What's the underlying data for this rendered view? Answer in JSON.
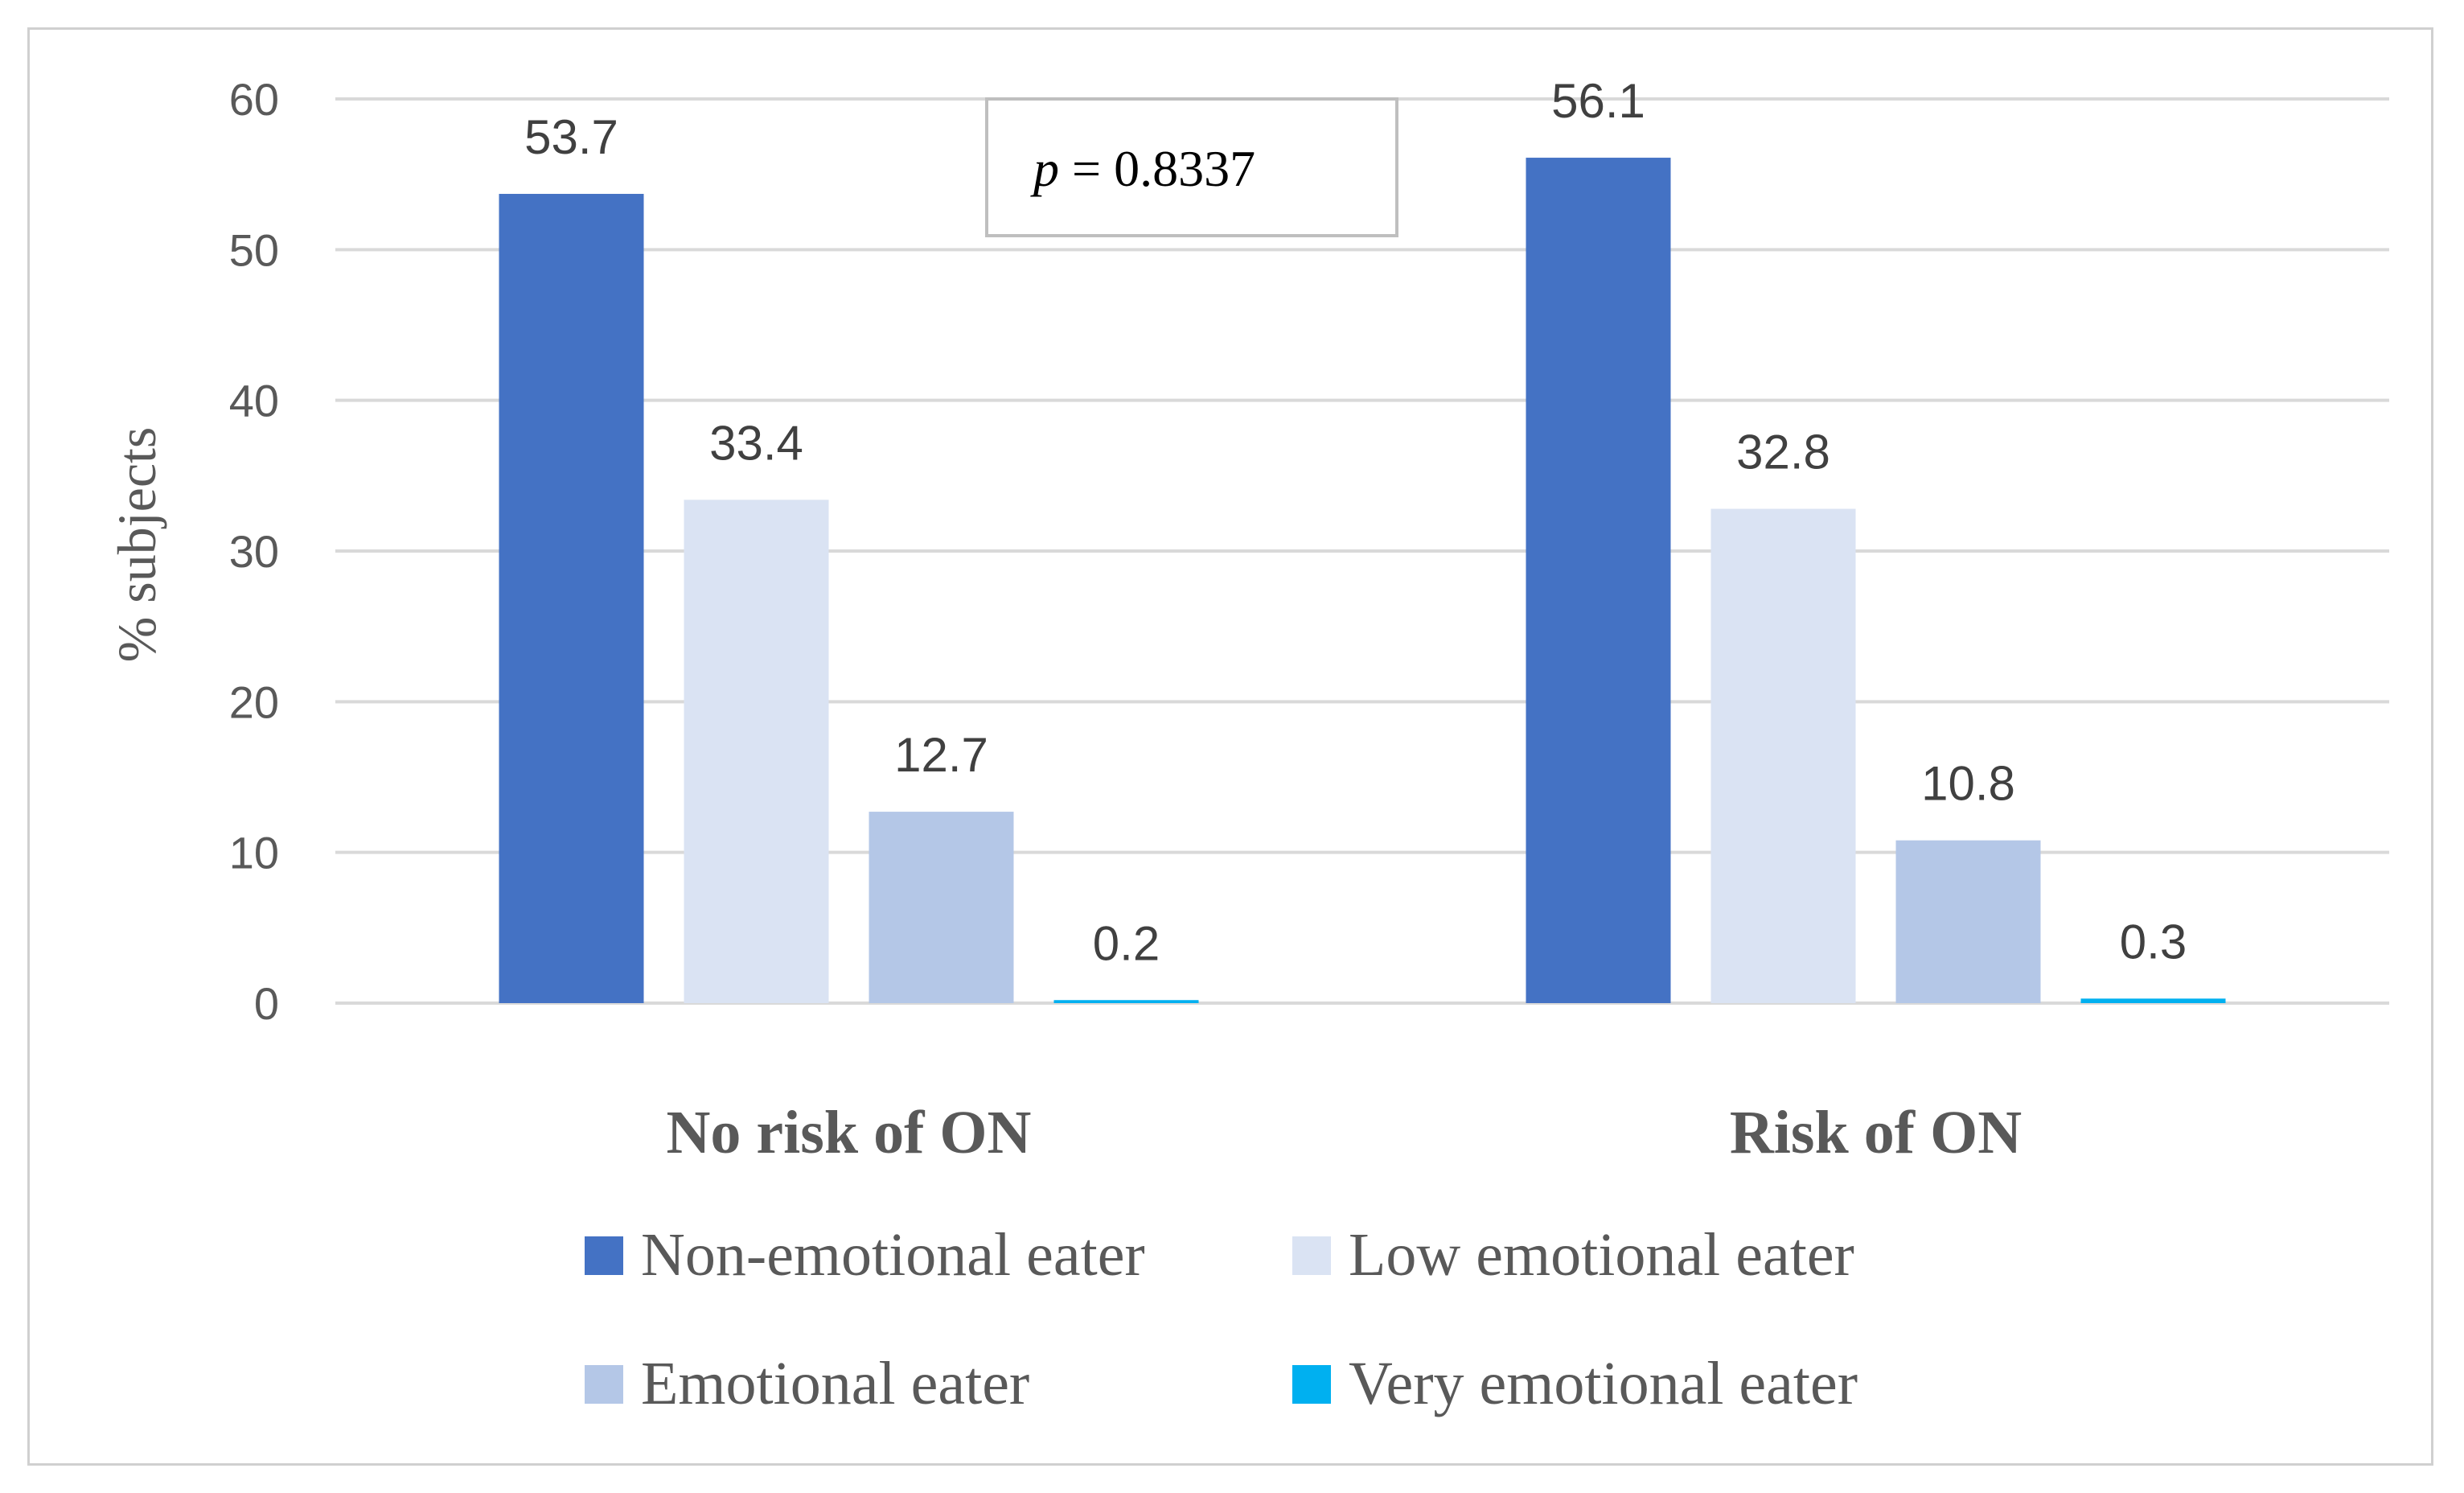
{
  "chart_data": {
    "type": "bar",
    "title": "",
    "xlabel": "",
    "ylabel": "% subjects",
    "ylim": [
      0,
      60
    ],
    "yticks": [
      0,
      10,
      20,
      30,
      40,
      50,
      60
    ],
    "categories": [
      "No risk of ON",
      "Risk of ON"
    ],
    "series": [
      {
        "name": "Non-emotional eater",
        "values": [
          53.7,
          56.1
        ],
        "labels": [
          "53.7",
          "56.1"
        ],
        "color": "#4472C4"
      },
      {
        "name": "Low emotional eater",
        "values": [
          33.4,
          32.8
        ],
        "labels": [
          "33.4",
          "32.8"
        ],
        "color": "#DAE3F3"
      },
      {
        "name": "Emotional eater",
        "values": [
          12.7,
          10.8
        ],
        "labels": [
          "12.7",
          "10.8"
        ],
        "color": "#B4C7E7"
      },
      {
        "name": "Very emotional eater",
        "values": [
          0.2,
          0.3
        ],
        "labels": [
          "0.2",
          "0.3"
        ],
        "color": "#00B0F0"
      }
    ],
    "grid": true,
    "legend_position": "bottom",
    "annotation": {
      "italic_part": "p",
      "rest": " = 0.8337"
    }
  }
}
